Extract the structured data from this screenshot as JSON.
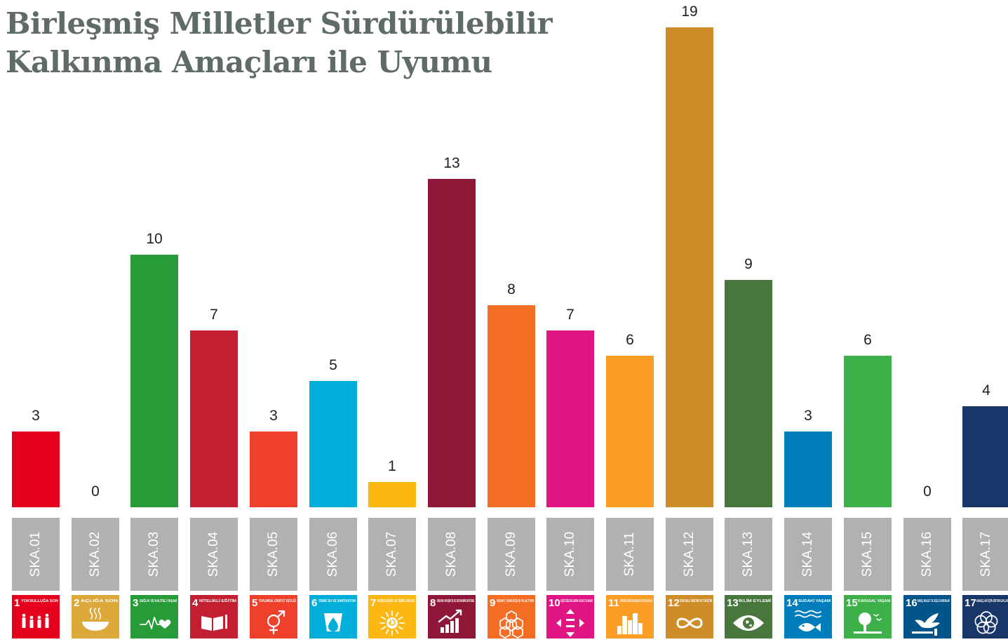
{
  "title": {
    "line1": "Birleşmiş Milletler Sürdürülebilir",
    "line2": "Kalkınma Amaçları ile Uyumu"
  },
  "chart_data": {
    "type": "bar",
    "title": "Birleşmiş Milletler Sürdürülebilir Kalkınma Amaçları ile Uyumu",
    "categories": [
      "SKA.01",
      "SKA.02",
      "SKA.03",
      "SKA.04",
      "SKA.05",
      "SKA.06",
      "SKA.07",
      "SKA.08",
      "SKA.09",
      "SKA.10",
      "SKA.11",
      "SKA.12",
      "SKA.13",
      "SKA.14",
      "SKA.15",
      "SKA.16",
      "SKA.17"
    ],
    "values": [
      3,
      0,
      10,
      7,
      3,
      5,
      1,
      13,
      8,
      7,
      6,
      19,
      9,
      3,
      6,
      0,
      4
    ],
    "colors": [
      "#e5001e",
      "#dda83a",
      "#279b37",
      "#c31f33",
      "#ef402b",
      "#00aed9",
      "#fdb713",
      "#8f1838",
      "#f36d25",
      "#e11484",
      "#f99d26",
      "#cf8d2a",
      "#48773e",
      "#007dbc",
      "#3eb049",
      "#02558b",
      "#183668"
    ],
    "ylim": [
      0,
      19
    ],
    "grid": false,
    "legend": "none",
    "goal_tiles": [
      {
        "number": "1",
        "label": "YOKSULLUĞA SON",
        "icon": "family-icon"
      },
      {
        "number": "2",
        "label": "AÇLIĞA SON",
        "icon": "bowl-icon"
      },
      {
        "number": "3",
        "label": "SAĞLIK VE KALİTELİ YAŞAM",
        "icon": "heartbeat-icon"
      },
      {
        "number": "4",
        "label": "NİTELİKLİ EĞİTİM",
        "icon": "book-icon"
      },
      {
        "number": "5",
        "label": "TOPLUMSAL CİNSİYET EŞİTLİĞİ",
        "icon": "gender-icon"
      },
      {
        "number": "6",
        "label": "TEMİZ SU VE SANİTASYON",
        "icon": "water-drop-icon"
      },
      {
        "number": "7",
        "label": "ERİŞİLEBİLİR VE TEMİZ ENERJİ",
        "icon": "sun-power-icon"
      },
      {
        "number": "8",
        "label": "İNSANA YAKIŞIR İŞ VE EKONOMİK BÜYÜME",
        "icon": "growth-chart-icon"
      },
      {
        "number": "9",
        "label": "SANAYİ, YENİLİKÇİLİK VE ALTYAPI",
        "icon": "cubes-icon"
      },
      {
        "number": "10",
        "label": "EŞİTSİZLİKLERİN AZALTILMASI",
        "icon": "equality-icon"
      },
      {
        "number": "11",
        "label": "SÜRDÜRÜLEBİLİR ŞEHİRLER VE TOPLULUKLAR",
        "icon": "city-icon"
      },
      {
        "number": "12",
        "label": "SORUMLU ÜRETİM VE TÜKETİM",
        "icon": "infinity-icon"
      },
      {
        "number": "13",
        "label": "İKLİM EYLEMİ",
        "icon": "eye-globe-icon"
      },
      {
        "number": "14",
        "label": "SUDAKİ YAŞAM",
        "icon": "fish-icon"
      },
      {
        "number": "15",
        "label": "KARASAL YAŞAM",
        "icon": "tree-icon"
      },
      {
        "number": "16",
        "label": "BARIŞ, ADALET VE GÜÇLÜ KURUMLAR",
        "icon": "dove-icon"
      },
      {
        "number": "17",
        "label": "AMAÇLAR İÇİN ORTAKLIKLAR",
        "icon": "flower-icon"
      }
    ]
  },
  "category_box_color": "#b1b1b1",
  "title_color": "#5f6b67"
}
